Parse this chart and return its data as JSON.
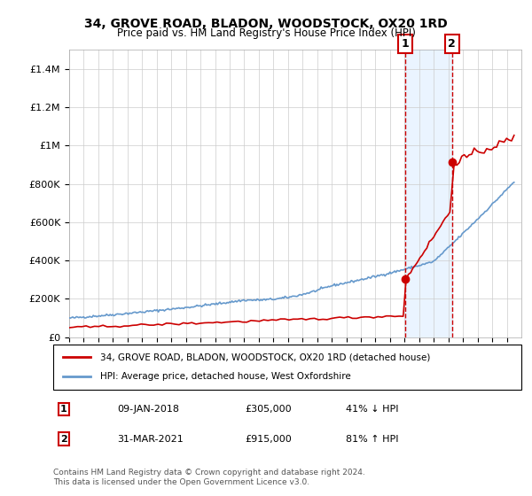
{
  "title": "34, GROVE ROAD, BLADON, WOODSTOCK, OX20 1RD",
  "subtitle": "Price paid vs. HM Land Registry's House Price Index (HPI)",
  "legend_line1": "34, GROVE ROAD, BLADON, WOODSTOCK, OX20 1RD (detached house)",
  "legend_line2": "HPI: Average price, detached house, West Oxfordshire",
  "footnote": "Contains HM Land Registry data © Crown copyright and database right 2024.\nThis data is licensed under the Open Government Licence v3.0.",
  "annotation1": {
    "num": "1",
    "date": "09-JAN-2018",
    "price": "£305,000",
    "pct": "41% ↓ HPI"
  },
  "annotation2": {
    "num": "2",
    "date": "31-MAR-2021",
    "price": "£915,000",
    "pct": "81% ↑ HPI"
  },
  "sale1_x": 2018.03,
  "sale1_y": 305000,
  "sale2_x": 2021.25,
  "sale2_y": 915000,
  "hpi_color": "#6699cc",
  "price_color": "#cc0000",
  "dashed_color": "#cc0000",
  "annotation_box_color": "#cc0000",
  "shaded_color": "#ddeeff",
  "background_color": "#ffffff",
  "grid_color": "#cccccc",
  "ylim": [
    0,
    1500000
  ],
  "xlim": [
    1995,
    2026
  ]
}
